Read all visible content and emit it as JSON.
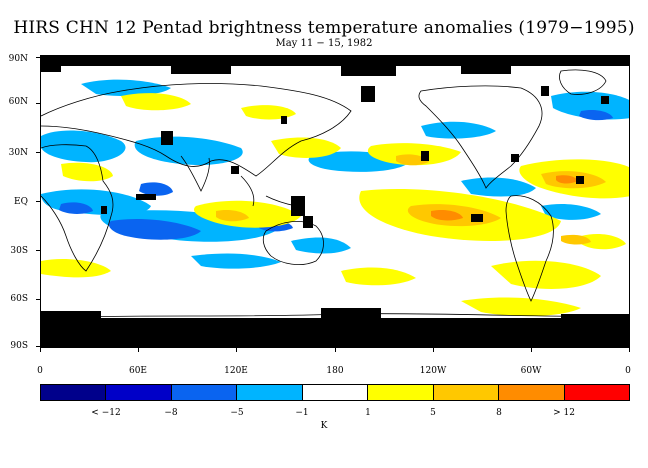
{
  "title": "HIRS CHN 12 Pentad brightness temperature anomalies (1979−1995)",
  "subtitle": "May 11 − 15, 1982",
  "lat_labels": [
    "90N",
    "60N",
    "30N",
    "EQ",
    "30S",
    "60S",
    "90S"
  ],
  "lon_labels": [
    "0",
    "60E",
    "120E",
    "180",
    "120W",
    "60W",
    "0"
  ],
  "colorbar": {
    "colors": [
      "#00008b",
      "#0000c8",
      "#0a64f0",
      "#00b4ff",
      "#ffffff",
      "#ffff00",
      "#ffc800",
      "#ff8c00",
      "#ff0000"
    ],
    "labels": [
      "< −12",
      "−8",
      "−5",
      "−1",
      "1",
      "5",
      "8",
      "> 12"
    ],
    "unit": "K"
  },
  "colors": {
    "missing": "#000000",
    "coast": "#000000"
  }
}
